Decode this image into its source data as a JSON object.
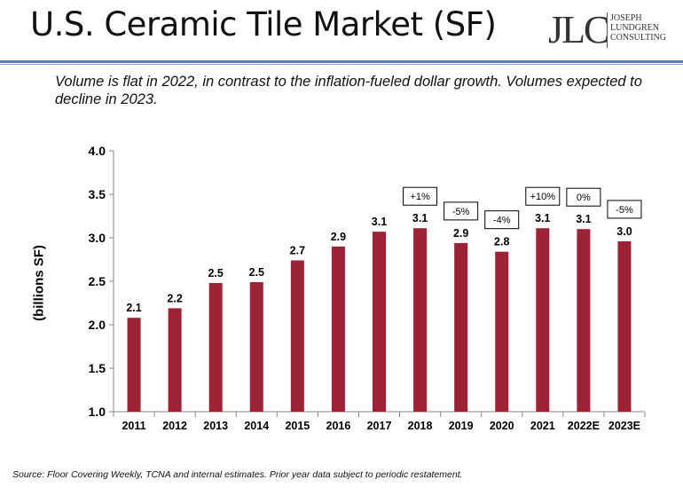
{
  "title": "U.S. Ceramic Tile Market (SF)",
  "logo": {
    "mark": "JLC",
    "lines": [
      "JOSEPH",
      "LUNDGREN",
      "CONSULTING"
    ]
  },
  "subtitle": "Volume is flat in 2022, in contrast to the inflation-fueled dollar growth.  Volumes expected to decline in 2023.",
  "source": "Source: Floor Covering Weekly, TCNA and internal estimates. Prior year data subject to periodic restatement.",
  "colors": {
    "bar": "#9b2335",
    "axis": "#888888"
  },
  "chart_data": {
    "type": "bar",
    "title": "",
    "xlabel": "",
    "ylabel": "(billions SF)",
    "ylim": [
      1.0,
      4.0
    ],
    "yticks": [
      "1.0",
      "1.5",
      "2.0",
      "2.5",
      "3.0",
      "3.5",
      "4.0"
    ],
    "grid": false,
    "categories": [
      "2011",
      "2012",
      "2013",
      "2014",
      "2015",
      "2016",
      "2017",
      "2018",
      "2019",
      "2020",
      "2021",
      "2022E",
      "2023E"
    ],
    "values": [
      2.08,
      2.19,
      2.48,
      2.49,
      2.74,
      2.9,
      3.07,
      3.11,
      2.94,
      2.84,
      3.11,
      3.1,
      2.96
    ],
    "data_labels": [
      "2.1",
      "2.2",
      "2.5",
      "2.5",
      "2.7",
      "2.9",
      "3.1",
      "3.1",
      "2.9",
      "2.8",
      "3.1",
      "3.1",
      "3.0"
    ],
    "annotations": [
      {
        "category": "2018",
        "text": "+1%"
      },
      {
        "category": "2019",
        "text": "-5%"
      },
      {
        "category": "2020",
        "text": "-4%"
      },
      {
        "category": "2021",
        "text": "+10%"
      },
      {
        "category": "2022E",
        "text": "0%"
      },
      {
        "category": "2023E",
        "text": "-5%"
      }
    ]
  }
}
